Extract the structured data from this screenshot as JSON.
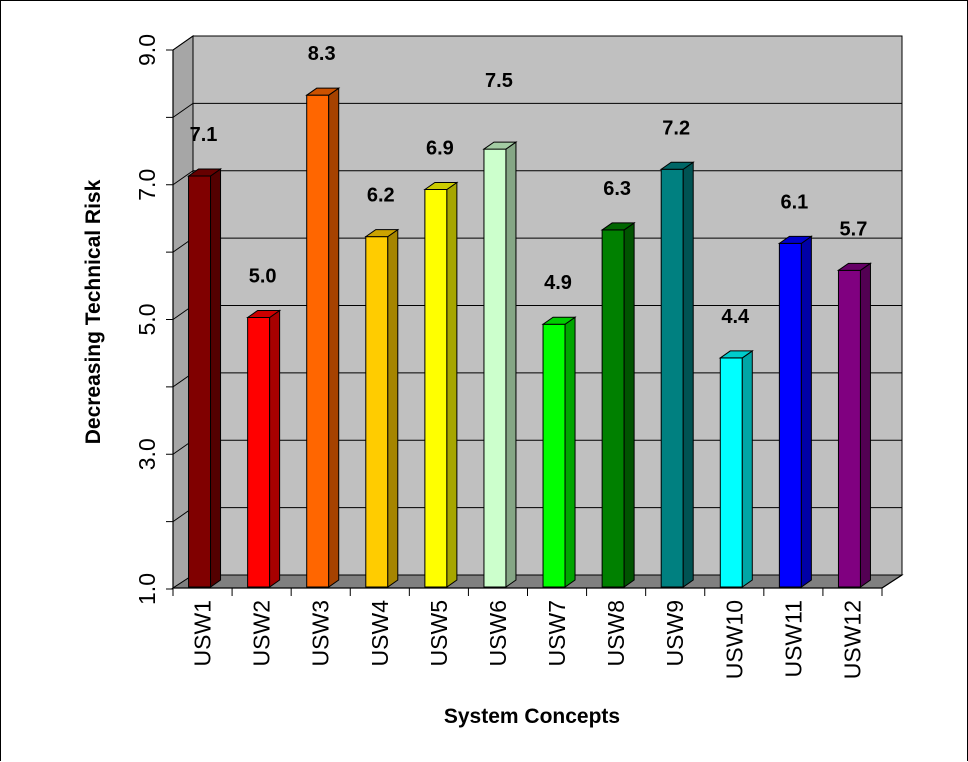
{
  "chart_data": {
    "type": "bar",
    "title": "",
    "xlabel": "System Concepts",
    "ylabel": "Decreasing Technical Risk",
    "ylim": [
      1.0,
      9.0
    ],
    "yticks": [
      "1.0",
      "3.0",
      "5.0",
      "7.0",
      "9.0"
    ],
    "grid": true,
    "categories": [
      "USW1",
      "USW2",
      "USW3",
      "USW4",
      "USW5",
      "USW6",
      "USW7",
      "USW8",
      "USW9",
      "USW10",
      "USW11",
      "USW12"
    ],
    "values": [
      7.1,
      5.0,
      8.3,
      6.2,
      6.9,
      7.5,
      4.9,
      6.3,
      7.2,
      4.4,
      6.1,
      5.7
    ],
    "data_labels": [
      "7.1",
      "5.0",
      "8.3",
      "6.2",
      "6.9",
      "7.5",
      "4.9",
      "6.3",
      "7.2",
      "4.4",
      "6.1",
      "5.7"
    ],
    "colors": [
      "#800000",
      "#ff0000",
      "#ff6600",
      "#ffcc00",
      "#ffff00",
      "#ccffcc",
      "#00ff00",
      "#008000",
      "#008080",
      "#00ffff",
      "#0000ff",
      "#800080"
    ],
    "wall_color": "#c0c0c0",
    "floor_color": "#808080"
  }
}
